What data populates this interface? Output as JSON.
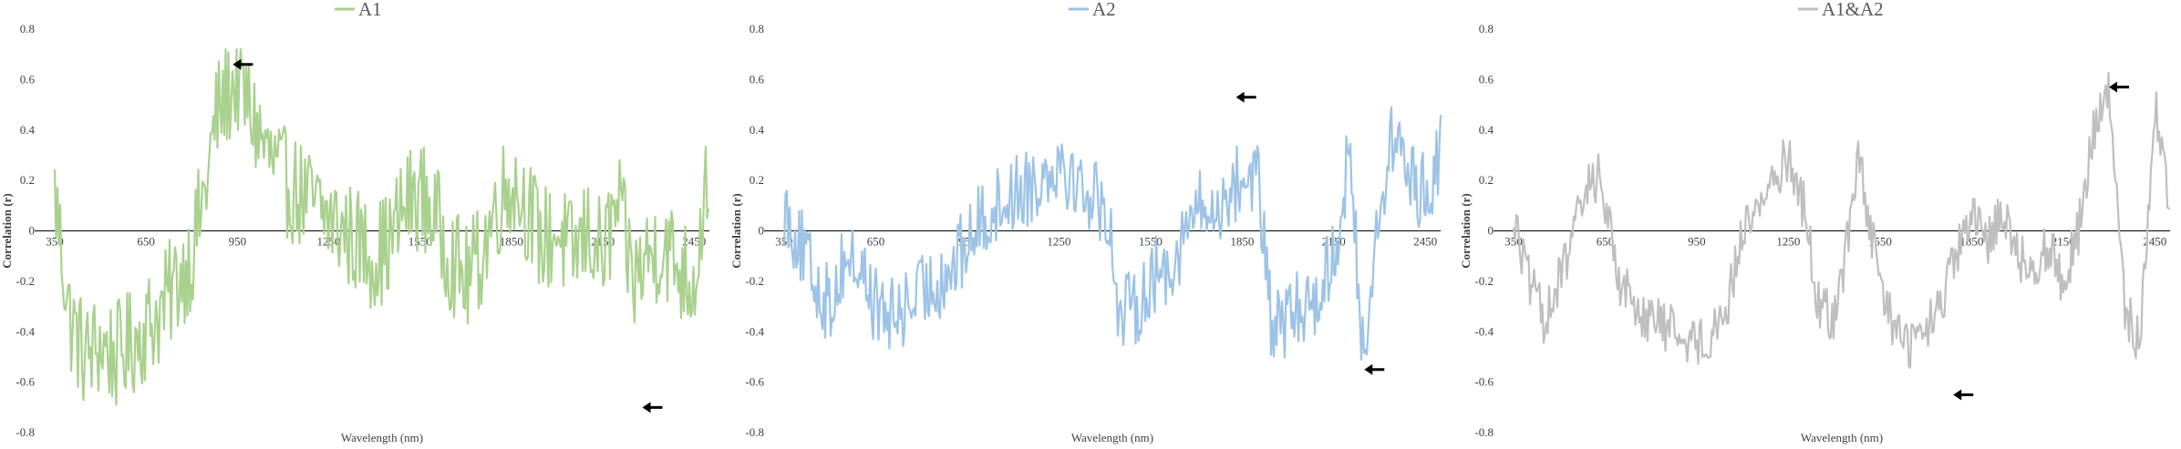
{
  "chart_data": [
    {
      "type": "line",
      "series": [
        {
          "name": "A1",
          "color": "#a9d18e"
        }
      ],
      "xlabel": "Wavelength (nm)",
      "ylabel": "Correlation (r)",
      "xlim": [
        350,
        2500
      ],
      "ylim": [
        -0.8,
        0.8
      ],
      "xticks": [
        350,
        650,
        950,
        1250,
        1550,
        1850,
        2150,
        2450
      ],
      "yticks": [
        -0.8,
        -0.6,
        -0.4,
        -0.2,
        0,
        0.2,
        0.4,
        0.6,
        0.8
      ],
      "gridlines": false,
      "legend_position": "top-center",
      "annotations": [
        {
          "type": "arrow",
          "x": 935,
          "y": 0.66,
          "direction": "left"
        },
        {
          "type": "arrow",
          "x": 2280,
          "y": -0.7,
          "direction": "left"
        }
      ],
      "points": [
        [
          350,
          0.15
        ],
        [
          400,
          -0.35
        ],
        [
          450,
          -0.5
        ],
        [
          500,
          -0.45
        ],
        [
          550,
          -0.5
        ],
        [
          600,
          -0.45
        ],
        [
          650,
          -0.38
        ],
        [
          700,
          -0.32
        ],
        [
          750,
          -0.2
        ],
        [
          800,
          -0.1
        ],
        [
          850,
          0.2
        ],
        [
          880,
          0.45
        ],
        [
          920,
          0.55
        ],
        [
          950,
          0.6
        ],
        [
          1000,
          0.45
        ],
        [
          1050,
          0.3
        ],
        [
          1100,
          0.2
        ],
        [
          1150,
          0.15
        ],
        [
          1200,
          0.1
        ],
        [
          1250,
          0.05
        ],
        [
          1300,
          0.0
        ],
        [
          1350,
          -0.05
        ],
        [
          1400,
          -0.1
        ],
        [
          1450,
          -0.05
        ],
        [
          1500,
          0.1
        ],
        [
          1550,
          0.15
        ],
        [
          1600,
          0.05
        ],
        [
          1650,
          -0.1
        ],
        [
          1700,
          -0.2
        ],
        [
          1750,
          -0.1
        ],
        [
          1800,
          0.1
        ],
        [
          1850,
          0.2
        ],
        [
          1900,
          0.1
        ],
        [
          1950,
          -0.05
        ],
        [
          2000,
          0.0
        ],
        [
          2050,
          -0.1
        ],
        [
          2100,
          0.0
        ],
        [
          2150,
          -0.1
        ],
        [
          2200,
          0.1
        ],
        [
          2250,
          -0.2
        ],
        [
          2300,
          -0.1
        ],
        [
          2350,
          -0.05
        ],
        [
          2400,
          -0.15
        ],
        [
          2450,
          -0.2
        ],
        [
          2500,
          0.3
        ]
      ]
    },
    {
      "type": "line",
      "series": [
        {
          "name": "A2",
          "color": "#9dc3e6"
        }
      ],
      "xlabel": "Wavelength (nm)",
      "ylabel": "Correlation (r)",
      "xlim": [
        350,
        2500
      ],
      "ylim": [
        -0.8,
        0.8
      ],
      "xticks": [
        350,
        650,
        950,
        1250,
        1550,
        1850,
        2150,
        2450
      ],
      "yticks": [
        -0.8,
        -0.6,
        -0.4,
        -0.2,
        0,
        0.2,
        0.4,
        0.6,
        0.8
      ],
      "gridlines": false,
      "legend_position": "top-center",
      "annotations": [
        {
          "type": "arrow",
          "x": 1830,
          "y": 0.53,
          "direction": "left"
        },
        {
          "type": "arrow",
          "x": 2250,
          "y": -0.55,
          "direction": "left"
        }
      ],
      "points": [
        [
          350,
          0.1
        ],
        [
          400,
          -0.05
        ],
        [
          450,
          -0.2
        ],
        [
          500,
          -0.3
        ],
        [
          550,
          -0.1
        ],
        [
          600,
          -0.15
        ],
        [
          650,
          -0.3
        ],
        [
          700,
          -0.35
        ],
        [
          750,
          -0.3
        ],
        [
          800,
          -0.25
        ],
        [
          850,
          -0.2
        ],
        [
          900,
          -0.15
        ],
        [
          950,
          -0.05
        ],
        [
          1000,
          0.05
        ],
        [
          1050,
          0.1
        ],
        [
          1100,
          0.15
        ],
        [
          1150,
          0.18
        ],
        [
          1200,
          0.22
        ],
        [
          1250,
          0.3
        ],
        [
          1300,
          0.2
        ],
        [
          1350,
          0.15
        ],
        [
          1400,
          0.1
        ],
        [
          1430,
          -0.1
        ],
        [
          1450,
          -0.35
        ],
        [
          1500,
          -0.3
        ],
        [
          1550,
          -0.2
        ],
        [
          1600,
          -0.15
        ],
        [
          1650,
          -0.05
        ],
        [
          1700,
          0.1
        ],
        [
          1750,
          0.05
        ],
        [
          1800,
          0.15
        ],
        [
          1850,
          0.2
        ],
        [
          1900,
          0.25
        ],
        [
          1930,
          -0.2
        ],
        [
          1950,
          -0.4
        ],
        [
          2000,
          -0.35
        ],
        [
          2050,
          -0.3
        ],
        [
          2100,
          -0.25
        ],
        [
          2150,
          -0.1
        ],
        [
          2200,
          0.3
        ],
        [
          2230,
          -0.2
        ],
        [
          2250,
          -0.5
        ],
        [
          2300,
          0.1
        ],
        [
          2350,
          0.4
        ],
        [
          2400,
          0.2
        ],
        [
          2450,
          0.15
        ],
        [
          2500,
          0.3
        ]
      ]
    },
    {
      "type": "line",
      "series": [
        {
          "name": "A1&A2",
          "color": "#bfbfbf"
        }
      ],
      "xlabel": "Wavelength (nm)",
      "ylabel": "Correlation (r)",
      "xlim": [
        350,
        2500
      ],
      "ylim": [
        -0.8,
        0.8
      ],
      "xticks": [
        350,
        650,
        950,
        1250,
        1550,
        1850,
        2150,
        2450
      ],
      "yticks": [
        -0.8,
        -0.6,
        -0.4,
        -0.2,
        0,
        0.2,
        0.4,
        0.6,
        0.8
      ],
      "gridlines": false,
      "legend_position": "top-center",
      "annotations": [
        {
          "type": "arrow",
          "x": 2300,
          "y": 0.57,
          "direction": "left"
        },
        {
          "type": "arrow",
          "x": 1790,
          "y": -0.65,
          "direction": "left"
        }
      ],
      "points": [
        [
          350,
          0.05
        ],
        [
          400,
          -0.2
        ],
        [
          450,
          -0.35
        ],
        [
          500,
          -0.2
        ],
        [
          550,
          0.0
        ],
        [
          600,
          0.2
        ],
        [
          630,
          0.22
        ],
        [
          650,
          0.1
        ],
        [
          700,
          -0.2
        ],
        [
          750,
          -0.3
        ],
        [
          800,
          -0.35
        ],
        [
          850,
          -0.38
        ],
        [
          900,
          -0.4
        ],
        [
          950,
          -0.45
        ],
        [
          1000,
          -0.4
        ],
        [
          1050,
          -0.3
        ],
        [
          1100,
          0.0
        ],
        [
          1150,
          0.1
        ],
        [
          1200,
          0.2
        ],
        [
          1250,
          0.3
        ],
        [
          1300,
          0.1
        ],
        [
          1350,
          -0.3
        ],
        [
          1400,
          -0.35
        ],
        [
          1450,
          0.0
        ],
        [
          1480,
          0.35
        ],
        [
          1500,
          0.1
        ],
        [
          1550,
          -0.2
        ],
        [
          1600,
          -0.4
        ],
        [
          1650,
          -0.45
        ],
        [
          1700,
          -0.4
        ],
        [
          1750,
          -0.3
        ],
        [
          1800,
          -0.1
        ],
        [
          1850,
          0.05
        ],
        [
          1900,
          -0.05
        ],
        [
          1950,
          0.1
        ],
        [
          2000,
          -0.1
        ],
        [
          2050,
          -0.15
        ],
        [
          2100,
          -0.05
        ],
        [
          2150,
          -0.2
        ],
        [
          2200,
          0.0
        ],
        [
          2250,
          0.4
        ],
        [
          2300,
          0.55
        ],
        [
          2350,
          -0.3
        ],
        [
          2400,
          -0.45
        ],
        [
          2450,
          0.5
        ],
        [
          2500,
          0.1
        ]
      ]
    }
  ]
}
